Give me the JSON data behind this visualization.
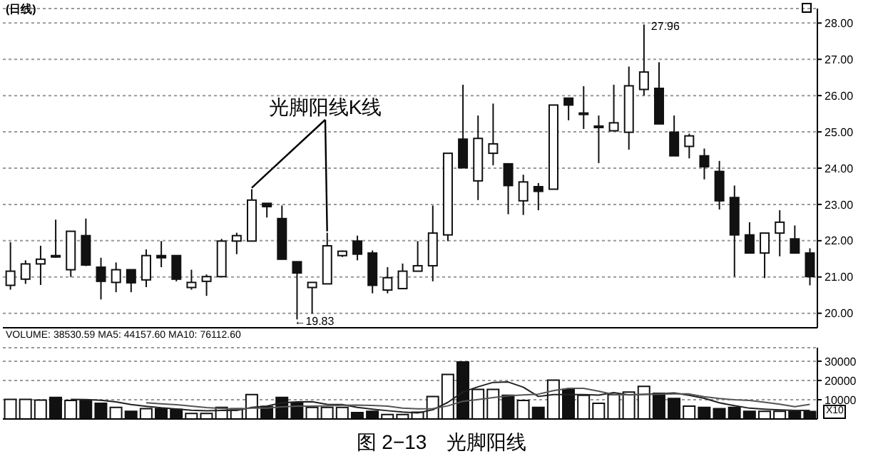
{
  "chart_data": [
    {
      "type": "candlestick",
      "title": "(日线)",
      "color": "#111111",
      "categories": [
        null,
        null,
        null,
        null,
        null,
        null,
        null,
        null,
        null,
        null,
        null,
        null,
        null,
        null,
        null,
        null,
        null,
        null,
        null,
        null,
        null,
        null,
        null,
        null,
        null,
        null,
        null,
        null,
        null,
        null,
        null,
        null,
        null,
        null,
        null,
        null,
        null,
        null,
        null,
        null,
        null,
        null,
        null,
        null,
        null,
        null,
        null,
        null,
        null,
        null,
        null,
        null,
        null,
        null
      ],
      "ohlc": [
        [
          20.77,
          21.96,
          20.65,
          21.16
        ],
        [
          20.94,
          21.46,
          20.81,
          21.36
        ],
        [
          21.36,
          21.86,
          20.78,
          21.49
        ],
        [
          21.59,
          22.58,
          21.53,
          21.56
        ],
        [
          21.2,
          22.26,
          21.0,
          22.26
        ],
        [
          22.14,
          22.61,
          21.3,
          21.33
        ],
        [
          21.27,
          21.53,
          20.38,
          20.88
        ],
        [
          20.85,
          21.4,
          20.58,
          21.2
        ],
        [
          21.2,
          21.2,
          20.58,
          20.84
        ],
        [
          20.92,
          21.76,
          20.72,
          21.59
        ],
        [
          21.59,
          21.99,
          21.27,
          21.53
        ],
        [
          21.59,
          21.59,
          20.88,
          20.94
        ],
        [
          20.71,
          21.2,
          20.65,
          20.85
        ],
        [
          20.88,
          21.07,
          20.48,
          21.01
        ],
        [
          21.01,
          22.05,
          21.01,
          21.99
        ],
        [
          21.99,
          22.22,
          21.63,
          22.14
        ],
        [
          21.99,
          23.42,
          21.99,
          23.12
        ],
        [
          23.03,
          23.03,
          22.64,
          22.94
        ],
        [
          22.61,
          22.97,
          21.49,
          21.49
        ],
        [
          21.42,
          21.42,
          19.83,
          21.11
        ],
        [
          20.71,
          20.85,
          19.99,
          20.85
        ],
        [
          20.81,
          22.22,
          20.81,
          21.86
        ],
        [
          21.59,
          21.73,
          21.55,
          21.71
        ],
        [
          21.99,
          22.14,
          21.46,
          21.63
        ],
        [
          21.66,
          21.73,
          20.55,
          20.77
        ],
        [
          20.64,
          21.27,
          20.55,
          20.98
        ],
        [
          20.68,
          21.37,
          20.68,
          21.16
        ],
        [
          21.16,
          21.99,
          21.16,
          21.31
        ],
        [
          21.31,
          22.97,
          20.88,
          22.21
        ],
        [
          22.16,
          24.41,
          21.99,
          24.41
        ],
        [
          24.8,
          26.3,
          24.01,
          24.01
        ],
        [
          23.65,
          25.45,
          23.12,
          24.82
        ],
        [
          24.41,
          25.78,
          24.08,
          24.67
        ],
        [
          24.12,
          24.12,
          22.73,
          23.52
        ],
        [
          23.1,
          23.82,
          22.71,
          23.62
        ],
        [
          23.49,
          23.59,
          22.84,
          23.36
        ],
        [
          23.42,
          25.74,
          23.42,
          25.74
        ],
        [
          25.93,
          25.93,
          25.32,
          25.74
        ],
        [
          25.48,
          26.26,
          25.08,
          25.52
        ],
        [
          25.12,
          25.45,
          24.14,
          25.16
        ],
        [
          25.03,
          26.3,
          25.03,
          25.25
        ],
        [
          24.99,
          26.8,
          24.51,
          26.27
        ],
        [
          26.17,
          27.96,
          26.0,
          26.65
        ],
        [
          26.2,
          26.92,
          25.22,
          25.22
        ],
        [
          24.99,
          25.45,
          24.34,
          24.34
        ],
        [
          24.6,
          24.95,
          24.27,
          24.89
        ],
        [
          24.34,
          24.54,
          23.69,
          24.04
        ],
        [
          23.91,
          24.2,
          22.86,
          23.1
        ],
        [
          23.19,
          23.52,
          21.01,
          22.16
        ],
        [
          22.16,
          22.51,
          21.66,
          21.66
        ],
        [
          21.66,
          22.21,
          20.97,
          22.21
        ],
        [
          22.21,
          22.84,
          21.57,
          22.51
        ],
        [
          22.05,
          22.42,
          21.66,
          21.66
        ],
        [
          21.66,
          21.79,
          20.77,
          21.01
        ]
      ],
      "ylim": [
        19.6,
        28.4
      ],
      "yticks": [
        {
          "value": 20,
          "label": "20.00"
        },
        {
          "value": 21,
          "label": "21.00"
        },
        {
          "value": 22,
          "label": "22.00"
        },
        {
          "value": 23,
          "label": "23.00"
        },
        {
          "value": 24,
          "label": "24.00"
        },
        {
          "value": 25,
          "label": "25.00"
        },
        {
          "value": 26,
          "label": "26.00"
        },
        {
          "value": 27,
          "label": "27.00"
        },
        {
          "value": 28,
          "label": "28.00"
        }
      ],
      "grid": "y",
      "tick_labels": "y",
      "annotations": [
        "光脚阳线K线",
        "27.96",
        "←19.83"
      ]
    },
    {
      "type": "bar",
      "categories": [
        null,
        null,
        null,
        null,
        null,
        null,
        null,
        null,
        null,
        null,
        null,
        null,
        null,
        null,
        null,
        null,
        null,
        null,
        null,
        null,
        null,
        null,
        null,
        null,
        null,
        null,
        null,
        null,
        null,
        null,
        null,
        null,
        null,
        null,
        null,
        null,
        null,
        null,
        null,
        null,
        null,
        null,
        null,
        null,
        null,
        null,
        null,
        null,
        null,
        null,
        null,
        null,
        null,
        null
      ],
      "series": [
        {
          "type": "bar",
          "color": "#111111",
          "values": [
            10200,
            10200,
            9800,
            11200,
            9600,
            9600,
            8100,
            6000,
            4000,
            5400,
            5400,
            5000,
            2900,
            2900,
            6000,
            5400,
            12700,
            6500,
            11200,
            8500,
            6000,
            6000,
            6000,
            3300,
            4000,
            2300,
            2300,
            3500,
            11700,
            23100,
            29600,
            15400,
            15400,
            12300,
            9600,
            6000,
            20200,
            15400,
            12300,
            8100,
            12700,
            14000,
            16900,
            13300,
            10600,
            6700,
            6000,
            5400,
            6000,
            4000,
            4000,
            4000,
            4000,
            3900
          ],
          "colors": [
            "#ffffff",
            "#ffffff",
            "#ffffff",
            "#111111",
            "#ffffff",
            "#111111",
            "#111111",
            "#ffffff",
            "#111111",
            "#ffffff",
            "#111111",
            "#111111",
            "#ffffff",
            "#ffffff",
            "#ffffff",
            "#ffffff",
            "#ffffff",
            "#111111",
            "#111111",
            "#111111",
            "#ffffff",
            "#ffffff",
            "#ffffff",
            "#111111",
            "#111111",
            "#ffffff",
            "#ffffff",
            "#ffffff",
            "#ffffff",
            "#ffffff",
            "#111111",
            "#ffffff",
            "#ffffff",
            "#111111",
            "#ffffff",
            "#111111",
            "#ffffff",
            "#111111",
            "#ffffff",
            "#ffffff",
            "#ffffff",
            "#ffffff",
            "#ffffff",
            "#111111",
            "#111111",
            "#ffffff",
            "#111111",
            "#111111",
            "#111111",
            "#111111",
            "#ffffff",
            "#ffffff",
            "#111111",
            "#111111"
          ]
        },
        {
          "type": "line",
          "color": "#222222",
          "values": [
            null,
            null,
            null,
            null,
            10200,
            10100,
            9700,
            8900,
            7500,
            6600,
            5800,
            5200,
            4500,
            4300,
            4400,
            4400,
            6000,
            6700,
            8400,
            8900,
            9000,
            7600,
            7500,
            6000,
            5100,
            4300,
            3600,
            3100,
            4800,
            8600,
            14000,
            16700,
            19000,
            19200,
            16500,
            11700,
            12700,
            12700,
            12700,
            12400,
            13700,
            12500,
            12800,
            13000,
            13500,
            12300,
            10700,
            8400,
            6900,
            5600,
            5100,
            4700,
            4400,
            4400
          ]
        },
        {
          "type": "line",
          "color": "#555555",
          "values": [
            null,
            null,
            null,
            null,
            null,
            null,
            null,
            null,
            null,
            8400,
            7900,
            7400,
            6700,
            5900,
            5500,
            5100,
            5600,
            5600,
            6300,
            6700,
            6700,
            6800,
            7100,
            7200,
            7000,
            6700,
            5600,
            5300,
            5400,
            6800,
            9200,
            10100,
            11100,
            12000,
            12500,
            12900,
            14700,
            15900,
            15900,
            14400,
            12700,
            12600,
            12800,
            12900,
            13000,
            13000,
            11600,
            10600,
            10000,
            9600,
            8700,
            7700,
            6400,
            7600
          ]
        }
      ],
      "ylim": [
        0,
        37000
      ],
      "yticks": [
        10000,
        20000,
        30000
      ],
      "grid": "y",
      "tick_labels": "y",
      "annotations": [
        "VOLUME: 38530.59 MA5: 44157.60 MA10: 76112.60",
        "X10",
        "图 2−13　光脚阳线"
      ]
    }
  ]
}
